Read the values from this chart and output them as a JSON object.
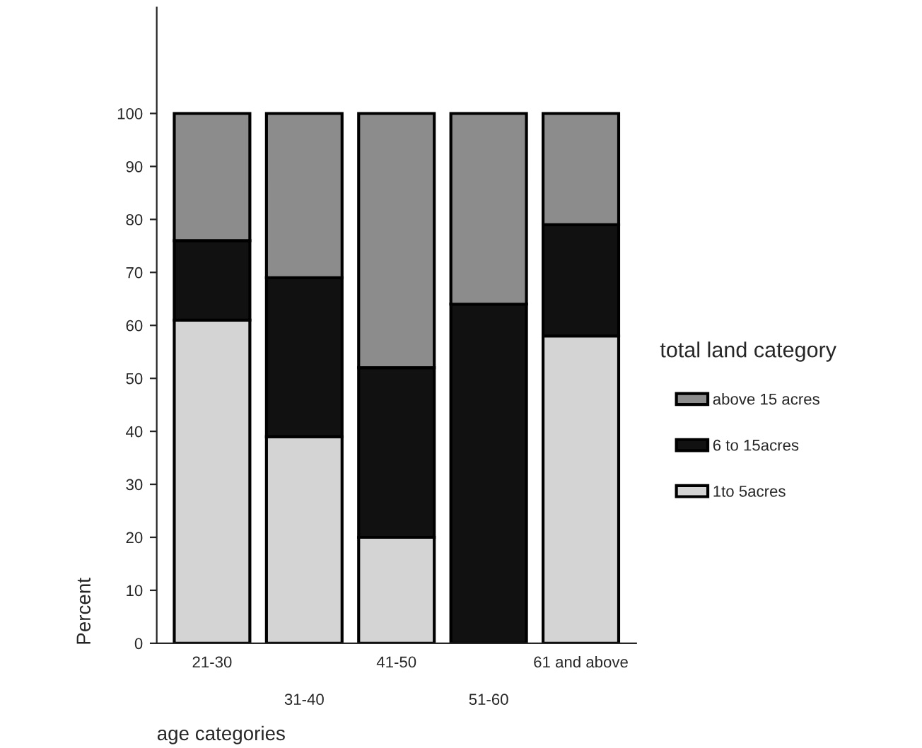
{
  "chart_data": {
    "type": "bar",
    "stacked": true,
    "xlabel": "age categories",
    "ylabel": "Percent",
    "legend_title": "total land category",
    "legend": "right",
    "categories": [
      "21-30",
      "31-40",
      "41-50",
      "51-60",
      "61 and above"
    ],
    "series": [
      {
        "name": "1to 5acres",
        "color": "#d4d4d4",
        "values": [
          61,
          39,
          20,
          0,
          58
        ]
      },
      {
        "name": "6 to 15acres",
        "color": "#111111",
        "values": [
          15,
          30,
          32,
          64,
          21
        ]
      },
      {
        "name": "above 15 acres",
        "color": "#8c8c8c",
        "values": [
          24,
          31,
          48,
          36,
          21
        ]
      }
    ],
    "ylim": [
      0,
      120
    ],
    "yticks": [
      0,
      10,
      20,
      30,
      40,
      50,
      60,
      70,
      80,
      90,
      100
    ],
    "grid": false
  }
}
